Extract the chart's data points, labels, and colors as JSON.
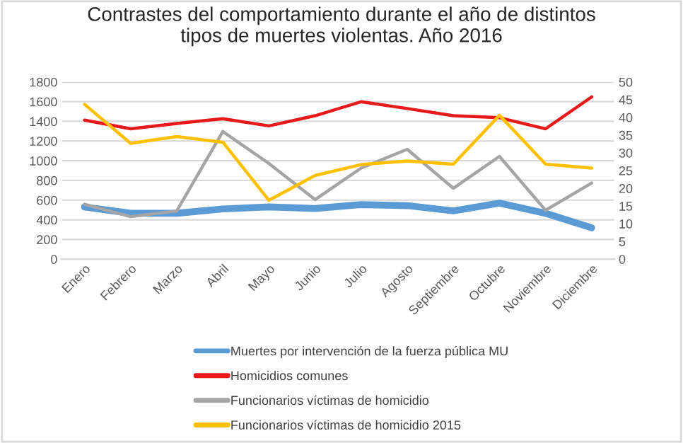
{
  "chart_data": {
    "type": "line",
    "title": "Contrastes del comportamiento durante el año de distintos\ntipos de muertes violentas. Año 2016",
    "categories": [
      "Enero",
      "Febrero",
      "Marzo",
      "Abril",
      "Mayo",
      "Junio",
      "Julio",
      "Agosto",
      "Septiembre",
      "Octubre",
      "Noviembre",
      "Diciembre"
    ],
    "series": [
      {
        "name": "Muertes por intervención de la fuerza pública MU",
        "color": "#5b9bd5",
        "values": [
          530,
          466,
          466,
          510,
          530,
          515,
          554,
          544,
          490,
          569,
          466,
          319
        ]
      },
      {
        "name": "Homicidios comunes",
        "color": "#e8191b",
        "values": [
          1412,
          1324,
          1378,
          1427,
          1354,
          1457,
          1599,
          1530,
          1457,
          1437,
          1324,
          1648
        ]
      },
      {
        "name": "Funcionarios víctimas de homicidio",
        "color": "#a5a5a5",
        "axis": "y2",
        "values": [
          15.5,
          12,
          13.6,
          36,
          27,
          16.8,
          25.7,
          31,
          20,
          29,
          13.8,
          21.5
        ]
      },
      {
        "name": "Funcionarios víctimas de homicidio 2015",
        "color": "#ffc000",
        "axis": "y2",
        "values": [
          43.7,
          32.7,
          34.6,
          33,
          16.6,
          23.6,
          26.7,
          27.7,
          26.8,
          40.6,
          26.8,
          25.7
        ]
      }
    ],
    "ylim": [
      0,
      1800
    ],
    "yticks": [
      0,
      200,
      400,
      600,
      800,
      1000,
      1200,
      1400,
      1600,
      1800
    ],
    "y2lim": [
      0,
      50
    ],
    "y2ticks": [
      0,
      5,
      10,
      15,
      20,
      25,
      30,
      35,
      40,
      45,
      50
    ],
    "grid": "y",
    "legend": "bottom"
  }
}
